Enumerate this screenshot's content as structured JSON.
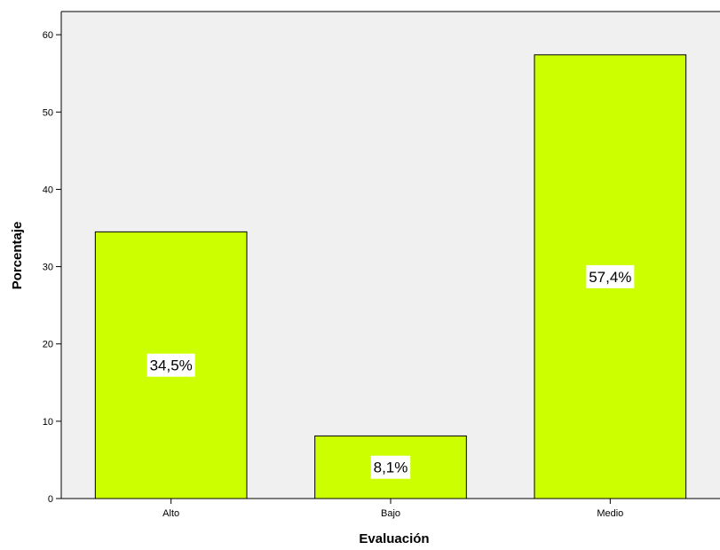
{
  "chart_data": {
    "type": "bar",
    "categories": [
      "Alto",
      "Bajo",
      "Medio"
    ],
    "values": [
      34.5,
      8.1,
      57.4
    ],
    "data_labels": [
      "34,5%",
      "8,1%",
      "57,4%"
    ],
    "xlabel": "Evaluación",
    "ylabel": "Porcentaje",
    "ylim": [
      0,
      63
    ],
    "yticks": [
      0,
      10,
      20,
      30,
      40,
      50,
      60
    ],
    "grid": false,
    "colors": {
      "plot_background": "#f0f0f0",
      "bar_fill": "#ccff00",
      "bar_stroke": "#000000",
      "label_background": "#ffffff"
    }
  }
}
